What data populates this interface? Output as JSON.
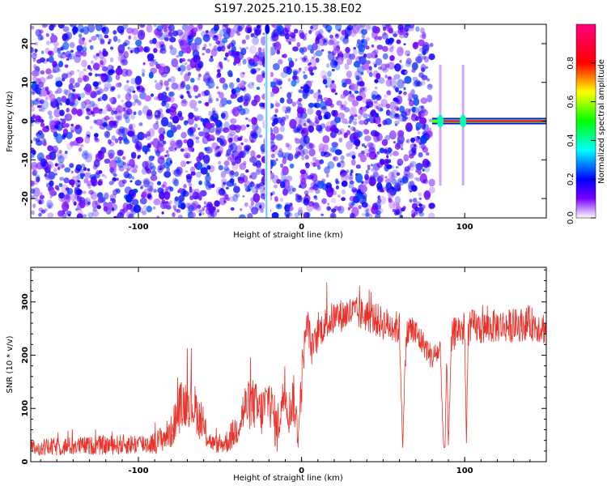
{
  "figure": {
    "title": "S197.2025.210.15.38.E02"
  },
  "chart_data": [
    {
      "type": "heatmap",
      "xlabel": "Height of straight line (km)",
      "ylabel": "Frequency (Hz)",
      "xlim": [
        -166,
        150
      ],
      "ylim": [
        -25,
        25
      ],
      "x_ticks": [
        -100,
        0,
        100
      ],
      "y_ticks": [
        -20,
        -10,
        0,
        10,
        20
      ],
      "x_tick_labels": [
        "-100",
        "0",
        "100"
      ],
      "y_tick_labels": [
        "-20",
        "-10",
        "0",
        "10",
        "20"
      ],
      "colorbar": {
        "label": "Normalized spectral amplitude",
        "range": [
          0,
          1
        ],
        "ticks": [
          0.0,
          0.2,
          0.4,
          0.6,
          0.8
        ],
        "tick_labels": [
          "0.0",
          "0.2",
          "0.4",
          "0.6",
          "0.8"
        ],
        "colormap": [
          "#ffffff",
          "#7a00ff",
          "#0000ff",
          "#00ffff",
          "#00ff00",
          "#ffff00",
          "#ff0000",
          "#ff0080"
        ]
      },
      "features": [
        {
          "description": "broadband noise speckle",
          "x_range": [
            -166,
            80
          ],
          "y_range": [
            -25,
            25
          ],
          "amplitude": [
            0.05,
            0.25
          ]
        },
        {
          "description": "vertical streak",
          "x": -21,
          "y_range": [
            -25,
            25
          ],
          "amplitude": 0.3
        },
        {
          "description": "narrow band at 0 Hz",
          "x_range": [
            80,
            150
          ],
          "y": 0,
          "amplitude": 0.95
        }
      ]
    },
    {
      "type": "line",
      "xlabel": "Height of straight line (km)",
      "ylabel": "SNR (10 * v/v)",
      "xlim": [
        -166,
        150
      ],
      "ylim": [
        0,
        365
      ],
      "x_ticks": [
        -100,
        0,
        100
      ],
      "y_ticks": [
        0,
        100,
        200,
        300
      ],
      "x_tick_labels": [
        "-100",
        "0",
        "100"
      ],
      "y_tick_labels": [
        "0",
        "100",
        "200",
        "300"
      ],
      "series": [
        {
          "color": "#e8322a",
          "x": [
            -166,
            -150,
            -130,
            -110,
            -90,
            -80,
            -75,
            -70,
            -65,
            -60,
            -55,
            -50,
            -45,
            -40,
            -35,
            -30,
            -25,
            -20,
            -15,
            -12,
            -10,
            -8,
            -5,
            -2,
            0,
            2,
            4,
            6,
            8,
            10,
            12,
            15,
            20,
            30,
            40,
            50,
            60,
            62,
            64,
            66,
            70,
            75,
            80,
            85,
            87,
            88,
            89,
            90,
            92,
            95,
            100,
            101,
            102,
            103,
            105,
            110,
            120,
            130,
            140,
            150
          ],
          "y": [
            25,
            28,
            30,
            32,
            35,
            55,
            100,
            115,
            100,
            60,
            35,
            30,
            40,
            60,
            100,
            110,
            90,
            120,
            60,
            110,
            130,
            90,
            120,
            50,
            150,
            230,
            260,
            210,
            220,
            240,
            250,
            260,
            270,
            280,
            275,
            260,
            250,
            30,
            230,
            250,
            240,
            220,
            195,
            210,
            30,
            25,
            210,
            30,
            230,
            250,
            245,
            30,
            240,
            250,
            255,
            250,
            255,
            255,
            260,
            250
          ],
          "noise_amplitude": [
            20,
            22,
            22,
            24,
            26,
            40,
            60,
            60,
            55,
            40,
            20,
            20,
            30,
            40,
            60,
            60,
            60,
            60,
            60,
            50,
            50,
            50,
            60,
            40,
            60,
            40,
            40,
            40,
            40,
            40,
            40,
            40,
            40,
            40,
            40,
            40,
            40,
            10,
            40,
            40,
            40,
            30,
            30,
            30,
            10,
            10,
            30,
            10,
            40,
            40,
            40,
            10,
            40,
            40,
            40,
            40,
            40,
            40,
            40,
            40
          ]
        }
      ]
    }
  ]
}
